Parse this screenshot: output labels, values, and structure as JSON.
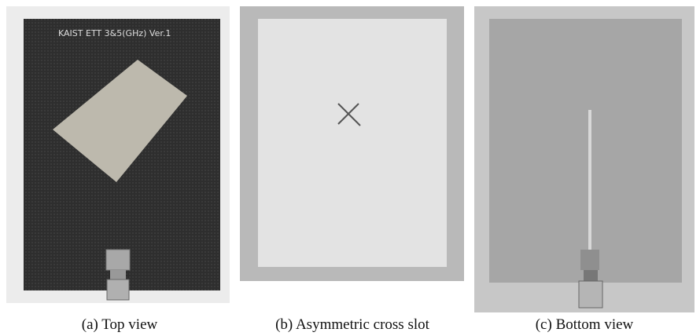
{
  "panels": [
    {
      "caption": "(a) Top view",
      "board_label": "KAIST ETT 3&5(GHz) Ver.1"
    },
    {
      "caption": "(b) Asymmetric cross slot"
    },
    {
      "caption": "(c) Bottom view"
    }
  ]
}
